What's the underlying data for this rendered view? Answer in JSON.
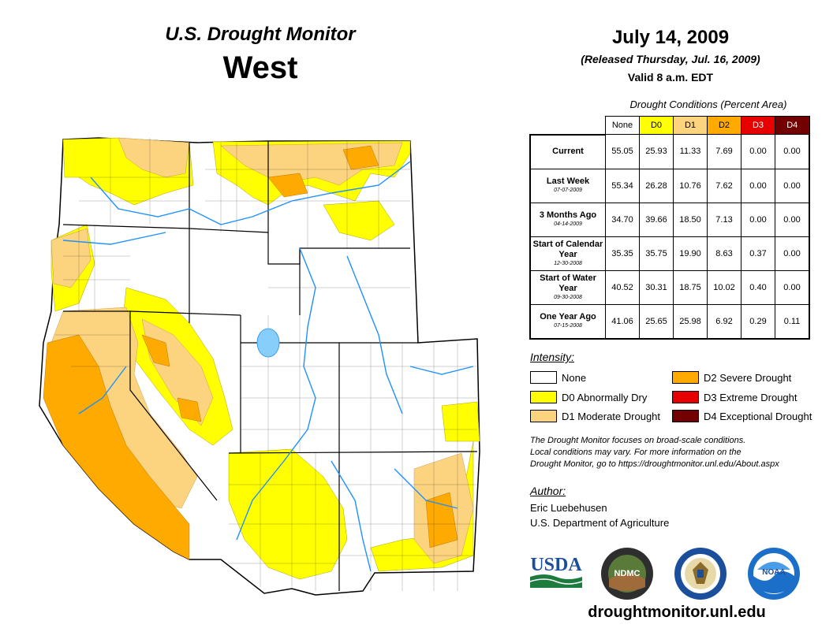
{
  "header": {
    "title": "U.S. Drought Monitor",
    "region": "West",
    "date": "July 14, 2009",
    "released": "(Released Thursday, Jul. 16, 2009)",
    "valid": "Valid 8 a.m. EDT"
  },
  "conditions": {
    "title": "Drought Conditions (Percent Area)",
    "columns": [
      "None",
      "D0",
      "D1",
      "D2",
      "D3",
      "D4"
    ],
    "column_colors": [
      "#ffffff",
      "#ffff00",
      "#fcd37f",
      "#ffaa00",
      "#e60000",
      "#730000"
    ],
    "rows": [
      {
        "label": "Current",
        "sub": "",
        "values": [
          "55.05",
          "25.93",
          "11.33",
          "7.69",
          "0.00",
          "0.00"
        ]
      },
      {
        "label": "Last Week",
        "sub": "07-07-2009",
        "values": [
          "55.34",
          "26.28",
          "10.76",
          "7.62",
          "0.00",
          "0.00"
        ]
      },
      {
        "label": "3 Months Ago",
        "sub": "04-14-2009",
        "values": [
          "34.70",
          "39.66",
          "18.50",
          "7.13",
          "0.00",
          "0.00"
        ]
      },
      {
        "label": "Start of Calendar Year",
        "sub": "12-30-2008",
        "values": [
          "35.35",
          "35.75",
          "19.90",
          "8.63",
          "0.37",
          "0.00"
        ]
      },
      {
        "label": "Start of Water Year",
        "sub": "09-30-2008",
        "values": [
          "40.52",
          "30.31",
          "18.75",
          "10.02",
          "0.40",
          "0.00"
        ]
      },
      {
        "label": "One Year Ago",
        "sub": "07-15-2008",
        "values": [
          "41.06",
          "25.65",
          "25.98",
          "6.92",
          "0.29",
          "0.11"
        ]
      }
    ]
  },
  "legend": {
    "title": "Intensity:",
    "items": [
      {
        "label": "None",
        "color": "#ffffff"
      },
      {
        "label": "D0 Abnormally Dry",
        "color": "#ffff00"
      },
      {
        "label": "D1 Moderate Drought",
        "color": "#fcd37f"
      },
      {
        "label": "D2 Severe Drought",
        "color": "#ffaa00"
      },
      {
        "label": "D3 Extreme Drought",
        "color": "#e60000"
      },
      {
        "label": "D4 Exceptional Drought",
        "color": "#730000"
      }
    ]
  },
  "note": {
    "line1": "The Drought Monitor focuses on broad-scale conditions.",
    "line2": "Local conditions may vary. For more information on the",
    "line3": "Drought Monitor, go to https://droughtmonitor.unl.edu/About.aspx"
  },
  "author": {
    "title": "Author:",
    "name": "Eric Luebehusen",
    "org": "U.S. Department of Agriculture"
  },
  "logos": {
    "usda": "USDA",
    "ndmc": "NDMC",
    "noaa": "NOAA"
  },
  "website": "droughtmonitor.unl.edu"
}
